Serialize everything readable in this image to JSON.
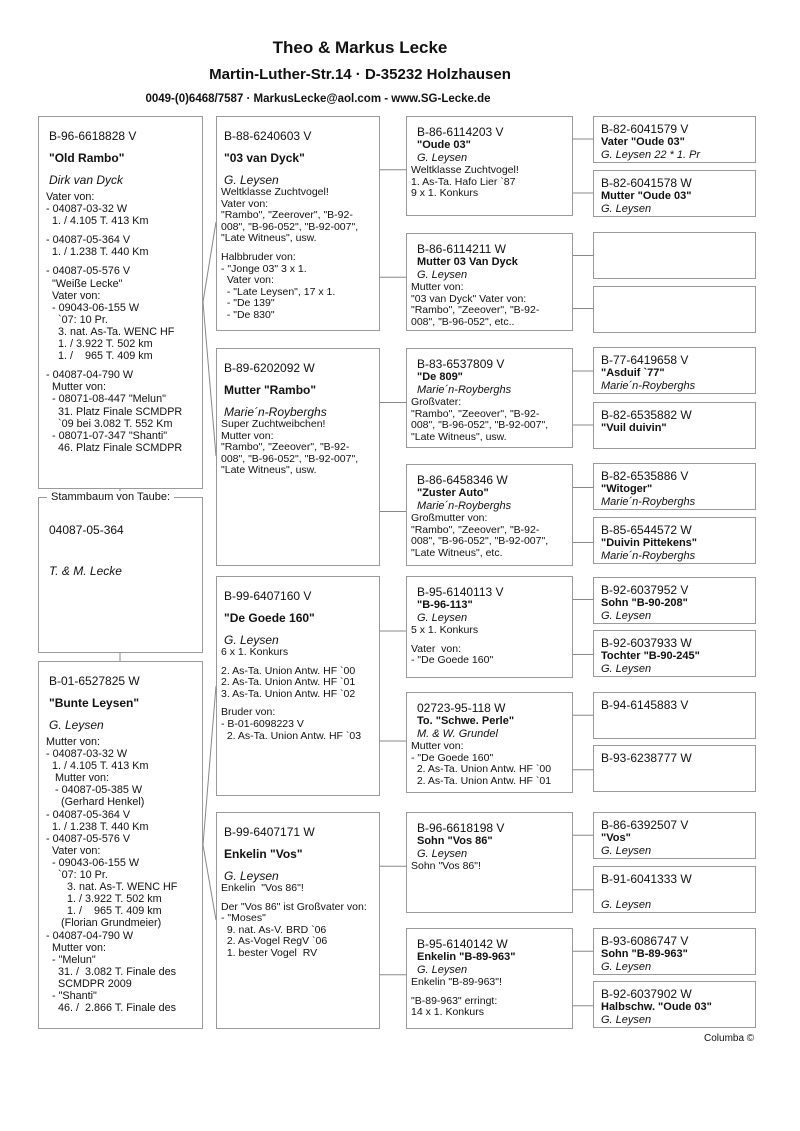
{
  "header": {
    "title": "Theo & Markus Lecke",
    "address": "Martin-Luther-Str.14  ·  D-35232 Holzhausen",
    "contact": "0049-(0)6468/7587  ·  MarkusLecke@aol.com   -   www.SG-Lecke.de"
  },
  "subject": {
    "legend": "Stammbaum von Taube:",
    "ring": "04087-05-364",
    "breeder": "T. & M. Lecke"
  },
  "boxes": [
    {
      "ring": "B-96-6618828 V",
      "name": "\"Old Rambo\"",
      "breeder": "Dirk van Dyck",
      "notes": [
        [
          "Vater von:",
          "- 04087-03-32 W",
          "  1. / 4.105 T. 413 Km"
        ],
        [
          "- 04087-05-364 V",
          "  1. / 1.238 T. 440 Km"
        ],
        [
          "- 04087-05-576 V",
          "  \"Weiße Lecke\"",
          "  Vater von:",
          "  - 09043-06-155 W",
          "    `07: 10 Pr.",
          "    3. nat. As-Ta. WENC HF",
          "    1. / 3.922 T. 502 km",
          "    1. /    965 T. 409 km"
        ],
        [
          "- 04087-04-790 W",
          "  Mutter von:",
          "  - 08071-08-447 \"Melun\"",
          "    31. Platz Finale SCMDPR",
          "    `09 bei 3.082 T. 552 Km",
          "  - 08071-07-347 \"Shanti\"",
          "    46. Platz Finale SCMDPR"
        ]
      ]
    },
    {
      "ring": "B-01-6527825 W",
      "name": "\"Bunte Leysen\"",
      "breeder": "G. Leysen",
      "notes": [
        [
          "Mutter von:",
          "- 04087-03-32 W",
          "  1. / 4.105 T. 413 Km",
          "   Mutter von:",
          "   - 04087-05-385 W",
          "     (Gerhard Henkel)",
          "- 04087-05-364 V",
          "  1. / 1.238 T. 440 Km",
          "- 04087-05-576 V",
          "  Vater von:",
          "  - 09043-06-155 W",
          "    `07: 10 Pr.",
          "       3. nat. As-T. WENC HF",
          "       1. / 3.922 T. 502 km",
          "       1. /    965 T. 409 km",
          "     (Florian Grundmeier)",
          "- 04087-04-790 W",
          "  Mutter von:",
          "  - \"Melun\"",
          "    31. /  3.082 T. Finale des",
          "    SCMDPR 2009",
          "  - \"Shanti\"",
          "    46. /  2.866 T. Finale des"
        ]
      ]
    },
    {
      "ring": "B-88-6240603 V",
      "name": "\"03 van Dyck\"",
      "breeder": "G. Leysen",
      "notes": [
        [
          "Weltklasse Zuchtvogel!",
          "Vater von:",
          "\"Rambo\", \"Zeerover\", \"B-92-",
          "008\", \"B-96-052\", \"B-92-007\",",
          "\"Late Witneus\", usw."
        ],
        [
          "Halbbruder von:",
          "- \"Jonge 03\" 3 x 1.",
          "  Vater von:",
          "  - \"Late Leysen\", 17 x 1.",
          "  - \"De 139\"",
          "  - \"De 830\""
        ]
      ]
    },
    {
      "ring": "B-89-6202092 W",
      "name": "Mutter \"Rambo\"",
      "breeder": "Marie´n-Royberghs",
      "notes": [
        [
          "Super Zuchtweibchen!",
          "Mutter von:",
          "\"Rambo\", \"Zeeover\", \"B-92-",
          "008\", \"B-96-052\", \"B-92-007\",",
          "\"Late Witneus\", usw."
        ]
      ]
    },
    {
      "ring": "B-99-6407160 V",
      "name": "\"De Goede 160\"",
      "breeder": "G. Leysen",
      "notes": [
        [
          "6 x 1. Konkurs"
        ],
        [
          "2. As-Ta. Union Antw. HF `00",
          "2. As-Ta. Union Antw. HF `01",
          "3. As-Ta. Union Antw. HF `02"
        ],
        [
          "Bruder von:",
          "- B-01-6098223 V",
          "  2. As-Ta. Union Antw. HF `03"
        ]
      ]
    },
    {
      "ring": "B-99-6407171 W",
      "name": "Enkelin \"Vos\"",
      "breeder": "G. Leysen",
      "notes": [
        [
          "Enkelin  \"Vos 86\"!"
        ],
        [
          "Der \"Vos 86\" ist Großvater von:",
          "- \"Moses\"",
          "  9. nat. As-V. BRD `06",
          "  2. As-Vogel RegV `06",
          "  1. bester Vogel  RV"
        ]
      ]
    },
    {
      "ring": "B-86-6114203 V",
      "name": "\"Oude 03\"",
      "breeder": "G. Leysen",
      "notes": [
        [
          "Weltklasse Zuchtvogel!",
          "1. As-Ta. Hafo Lier `87",
          "9 x 1. Konkurs"
        ]
      ]
    },
    {
      "ring": "B-86-6114211 W",
      "name": "Mutter 03 Van Dyck",
      "breeder": "G. Leysen",
      "notes": [
        [
          "Mutter von:",
          "\"03 van Dyck\" Vater von:",
          "\"Rambo\", \"Zeeover\", \"B-92-",
          "008\", \"B-96-052\", etc.."
        ]
      ]
    },
    {
      "ring": "B-83-6537809 V",
      "name": "\"De 809\"",
      "breeder": "Marie´n-Royberghs",
      "notes": [
        [
          "Großvater:",
          "\"Rambo\", \"Zeeover\", \"B-92-",
          "008\", \"B-96-052\", \"B-92-007\",",
          "\"Late Witneus\", usw."
        ]
      ]
    },
    {
      "ring": "B-86-6458346 W",
      "name": "\"Zuster Auto\"",
      "breeder": "Marie´n-Royberghs",
      "notes": [
        [
          "Großmutter von:",
          "\"Rambo\", \"Zeeover\", \"B-92-",
          "008\", \"B-96-052\", \"B-92-007\",",
          "\"Late Witneus\", etc."
        ]
      ]
    },
    {
      "ring": "B-95-6140113 V",
      "name": "\"B-96-113\"",
      "breeder": "G. Leysen",
      "notes": [
        [
          "5 x 1. Konkurs"
        ],
        [
          "Vater  von:",
          "- \"De Goede 160\""
        ]
      ]
    },
    {
      "ring": "02723-95-118 W",
      "name": "To. \"Schwe. Perle\"",
      "breeder": "M. & W. Grundel",
      "notes": [
        [
          "Mutter von:",
          "- \"De Goede 160\"",
          "  2. As-Ta. Union Antw. HF `00",
          "  2. As-Ta. Union Antw. HF `01"
        ]
      ]
    },
    {
      "ring": "B-96-6618198 V",
      "name": "Sohn \"Vos 86\"",
      "breeder": "G. Leysen",
      "notes": [
        [
          "Sohn \"Vos 86\"!"
        ]
      ]
    },
    {
      "ring": "B-95-6140142 W",
      "name": "Enkelin \"B-89-963\"",
      "breeder": "G. Leysen",
      "notes": [
        [
          "Enkelin \"B-89-963\"!"
        ],
        [
          "\"B-89-963\" erringt:",
          "14 x 1. Konkurs"
        ]
      ]
    },
    {
      "ring": "B-82-6041579 V",
      "name": "Vater  \"Oude 03\"",
      "breeder": "G. Leysen 22 * 1. Pr"
    },
    {
      "ring": "B-82-6041578 W",
      "name": "Mutter \"Oude 03\"",
      "breeder": "G. Leysen"
    },
    {
      "ring": "",
      "name": "",
      "breeder": ""
    },
    {
      "ring": "",
      "name": "",
      "breeder": ""
    },
    {
      "ring": "B-77-6419658 V",
      "name": "\"Asduif `77\"",
      "breeder": "Marie´n-Royberghs"
    },
    {
      "ring": "B-82-6535882 W",
      "name": "\"Vuil duivin\"",
      "breeder": ""
    },
    {
      "ring": "B-82-6535886 V",
      "name": "\"Witoger\"",
      "breeder": "Marie´n-Royberghs"
    },
    {
      "ring": "B-85-6544572 W",
      "name": "\"Duivin Pittekens\"",
      "breeder": "Marie´n-Royberghs"
    },
    {
      "ring": "B-92-6037952 V",
      "name": "Sohn \"B-90-208\"",
      "breeder": "G. Leysen"
    },
    {
      "ring": "B-92-6037933 W",
      "name": "Tochter \"B-90-245\"",
      "breeder": "G. Leysen"
    },
    {
      "ring": "B-94-6145883 V",
      "name": "",
      "breeder": ""
    },
    {
      "ring": "B-93-6238777 W",
      "name": "",
      "breeder": ""
    },
    {
      "ring": "B-86-6392507 V",
      "name": "\"Vos\"",
      "breeder": "G. Leysen"
    },
    {
      "ring": "B-91-6041333 W",
      "name": "",
      "breeder": "G. Leysen",
      "breeder_offset": true
    },
    {
      "ring": "B-93-6086747 V",
      "name": "Sohn \"B-89-963\"",
      "breeder": "G. Leysen"
    },
    {
      "ring": "B-92-6037902 W",
      "name": "Halbschw. \"Oude 03\"",
      "breeder": "G. Leysen"
    }
  ],
  "footer": "Columba ©"
}
